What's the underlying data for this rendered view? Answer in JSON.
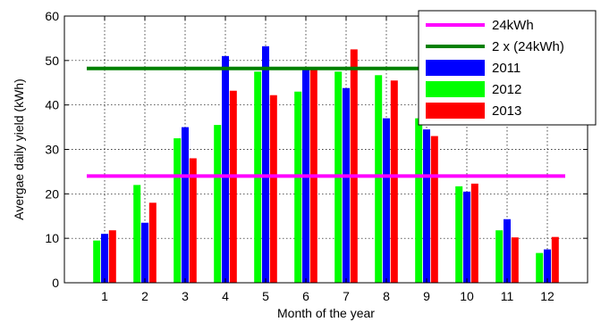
{
  "chart_data": {
    "type": "bar",
    "xlabel": "Month of the year",
    "ylabel": "Avergae daily yield (kWh)",
    "categories": [
      "1",
      "2",
      "3",
      "4",
      "5",
      "6",
      "7",
      "8",
      "9",
      "10",
      "11",
      "12"
    ],
    "ylim": [
      0,
      60
    ],
    "yticks": [
      "0",
      "10",
      "20",
      "30",
      "40",
      "50",
      "60"
    ],
    "grid": true,
    "legend_position": "top-right",
    "series": [
      {
        "name": "2011",
        "color": "#0000ff",
        "values": [
          11,
          13.5,
          35,
          51,
          53.2,
          48.5,
          43.8,
          37,
          34.5,
          20.5,
          14.3,
          7.5
        ]
      },
      {
        "name": "2012",
        "color": "#00ff00",
        "values": [
          9.5,
          22,
          32.5,
          35.5,
          47.5,
          43,
          47.5,
          46.7,
          37,
          21.7,
          11.8,
          6.7
        ]
      },
      {
        "name": "2013",
        "color": "#ff0000",
        "values": [
          11.8,
          18,
          28,
          43.2,
          42.2,
          48.5,
          52.5,
          45.5,
          33,
          22.3,
          10.2,
          10.3
        ]
      }
    ],
    "reference_lines": [
      {
        "name": "24kWh",
        "color": "#ff00ff",
        "value": 24
      },
      {
        "name": "2 x (24kWh)",
        "color": "#008000",
        "value": 48.2
      }
    ],
    "legend": [
      "24kWh",
      "2 x (24kWh)",
      "2011",
      "2012",
      "2013"
    ]
  }
}
